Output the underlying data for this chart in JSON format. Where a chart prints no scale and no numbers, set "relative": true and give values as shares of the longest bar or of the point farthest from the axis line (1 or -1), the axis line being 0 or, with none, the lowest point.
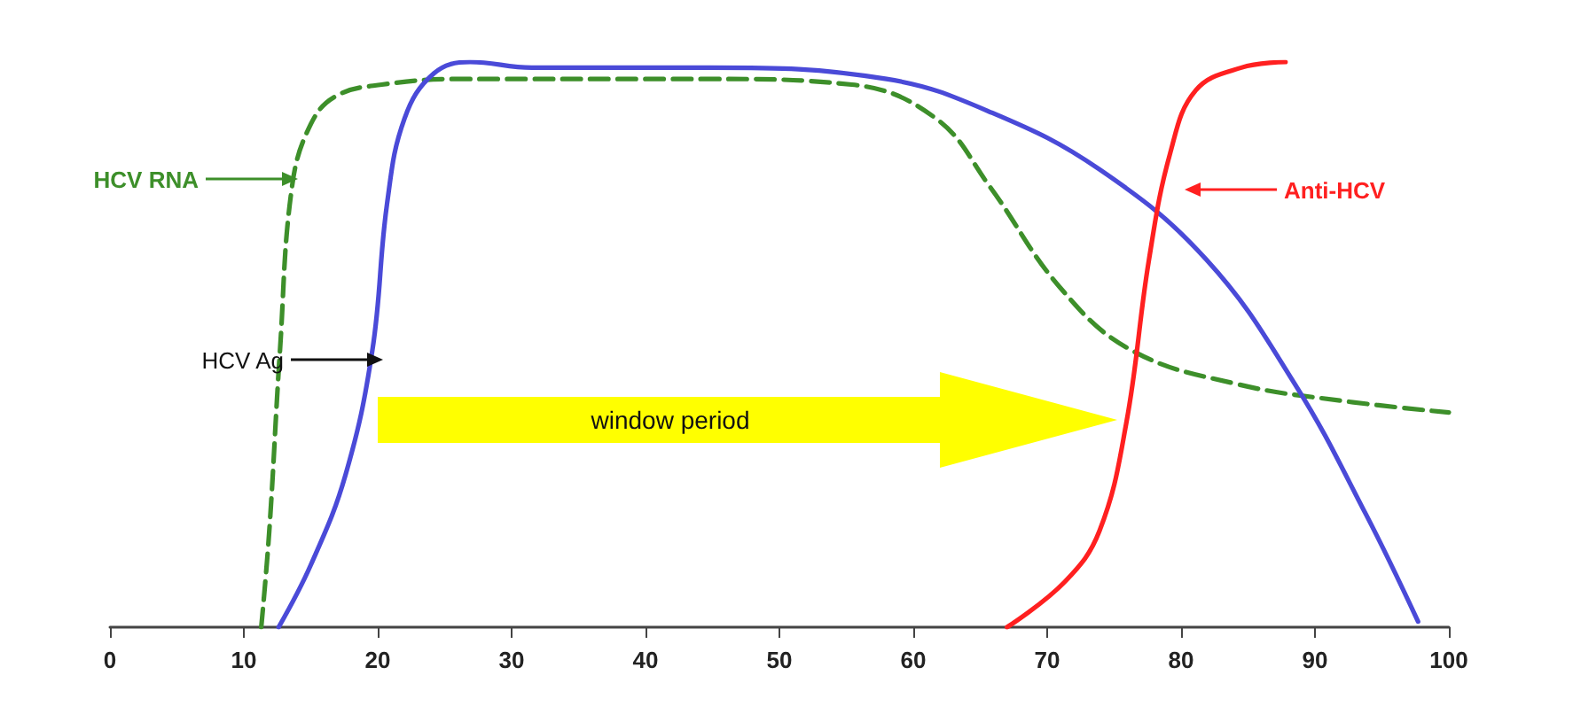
{
  "chart_data": {
    "type": "line",
    "relative": true,
    "xlim": [
      0,
      100
    ],
    "xticks": [
      0,
      10,
      20,
      30,
      40,
      50,
      60,
      70,
      80,
      90,
      100
    ],
    "grid": false,
    "marker": "none",
    "series": [
      {
        "color": "#3d8f2a",
        "line_style": "dashed",
        "x": [
          11.3,
          11.9,
          12.7,
          13.6,
          15,
          16.9,
          20.3,
          26.2,
          44.8,
          55.4,
          61.7,
          65.7,
          71,
          76.3,
          84.2,
          92.2,
          100
        ],
        "values": [
          0,
          0.17,
          0.49,
          0.78,
          0.89,
          0.94,
          0.96,
          0.97,
          0.97,
          0.96,
          0.9,
          0.78,
          0.6,
          0.49,
          0.43,
          0.4,
          0.38
        ]
      },
      {
        "color": "#4a4ad8",
        "line_style": "solid",
        "x": [
          12.6,
          15,
          17.6,
          19.6,
          20.7,
          22,
          24.2,
          26.9,
          31.5,
          44.8,
          58,
          65.9,
          73.9,
          81.9,
          88.5,
          93.8,
          97.7
        ],
        "values": [
          0,
          0.11,
          0.27,
          0.49,
          0.75,
          0.9,
          0.98,
          1,
          0.99,
          0.99,
          0.97,
          0.91,
          0.81,
          0.65,
          0.43,
          0.2,
          0.01
        ]
      },
      {
        "color": "#ff2020",
        "line_style": "solid",
        "x": [
          67,
          71.3,
          73.9,
          75.9,
          77.6,
          79.2,
          81.1,
          84.5,
          87.8
        ],
        "values": [
          0,
          0.08,
          0.17,
          0.36,
          0.65,
          0.84,
          0.95,
          0.99,
          1
        ]
      }
    ],
    "annotations": [
      "HCV RNA",
      "HCV Ag",
      "Anti-HCV",
      "window period"
    ]
  }
}
